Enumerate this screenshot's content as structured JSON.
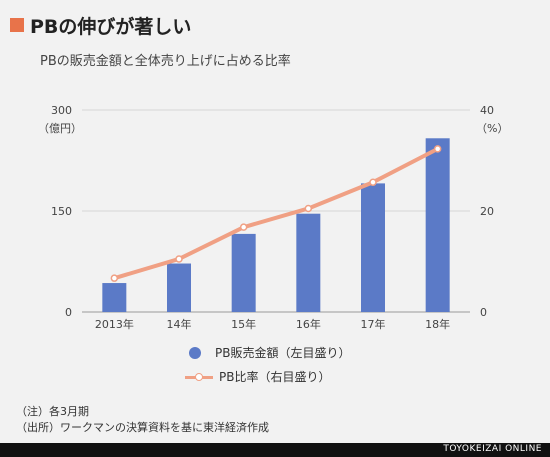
{
  "title": "PBの伸びが著しい",
  "subtitle": "PBの販売金額と全体売り上げに占める比率",
  "brand": "TOYOKEIZAI ONLINE",
  "notes": [
    "（注）各3月期",
    "（出所）ワークマンの決算資料を基に東洋経済作成"
  ],
  "colors": {
    "bar": "#5b7ac7",
    "line": "#f0a084",
    "accent": "#e8734a"
  },
  "chart_data": {
    "type": "bar",
    "categories": [
      "2013年",
      "14年",
      "15年",
      "16年",
      "17年",
      "18年"
    ],
    "y_left": {
      "unit": "（億円）",
      "ylim": [
        0,
        300
      ],
      "ticks": [
        0,
        150,
        300
      ]
    },
    "y_right": {
      "unit": "（%）",
      "ylim": [
        0,
        40
      ],
      "ticks": [
        0,
        20,
        40
      ]
    },
    "series": [
      {
        "name": "PB販売金額（左目盛り）",
        "type": "bar",
        "axis": "left",
        "values": [
          43,
          72,
          116,
          146,
          191,
          258
        ]
      },
      {
        "name": "PB比率（右目盛り）",
        "type": "line",
        "axis": "right",
        "values": [
          6.7,
          10.5,
          16.8,
          20.5,
          25.7,
          32.3
        ]
      }
    ],
    "grid": true,
    "legend": "bottom"
  }
}
